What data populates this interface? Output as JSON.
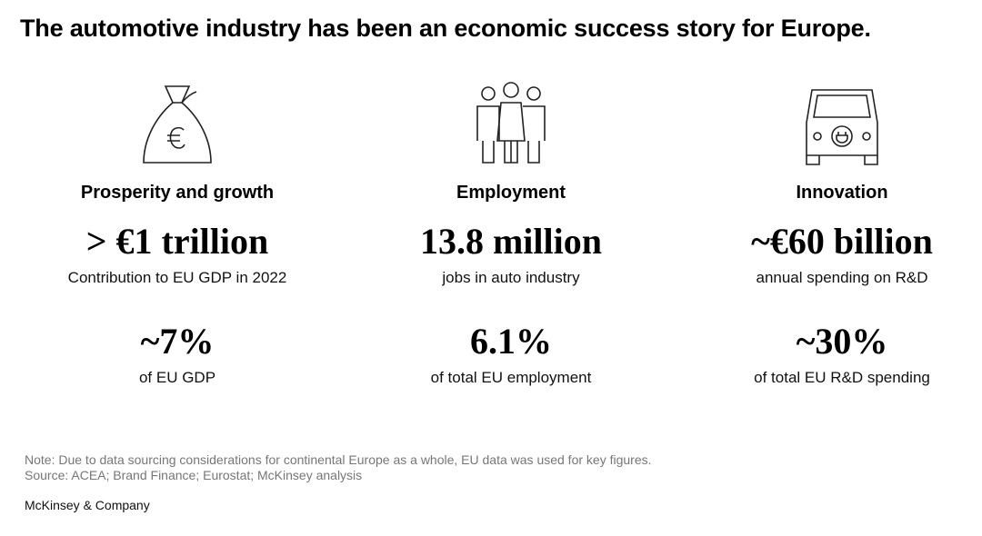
{
  "header": {
    "title": "The automotive industry has been an economic success story for Europe."
  },
  "columns": [
    {
      "heading": "Prosperity and growth",
      "stats": [
        {
          "value": "> €1 trillion",
          "label": "Contribution to EU GDP in 2022"
        },
        {
          "value": "~7%",
          "label": "of EU GDP"
        }
      ]
    },
    {
      "heading": "Employment",
      "stats": [
        {
          "value": "13.8 million",
          "label": "jobs in auto industry"
        },
        {
          "value": "6.1%",
          "label": "of total EU employment"
        }
      ]
    },
    {
      "heading": "Innovation",
      "stats": [
        {
          "value": "~€60 billion",
          "label": "annual spending on R&D"
        },
        {
          "value": "~30%",
          "label": "of total EU R&D spending"
        }
      ]
    }
  ],
  "footer": {
    "note": "Note: Due to data sourcing considerations for continental Europe as a whole, EU data was used for key figures.",
    "source": "Source: ACEA; Brand Finance; Eurostat; McKinsey analysis",
    "brand": "McKinsey & Company"
  }
}
